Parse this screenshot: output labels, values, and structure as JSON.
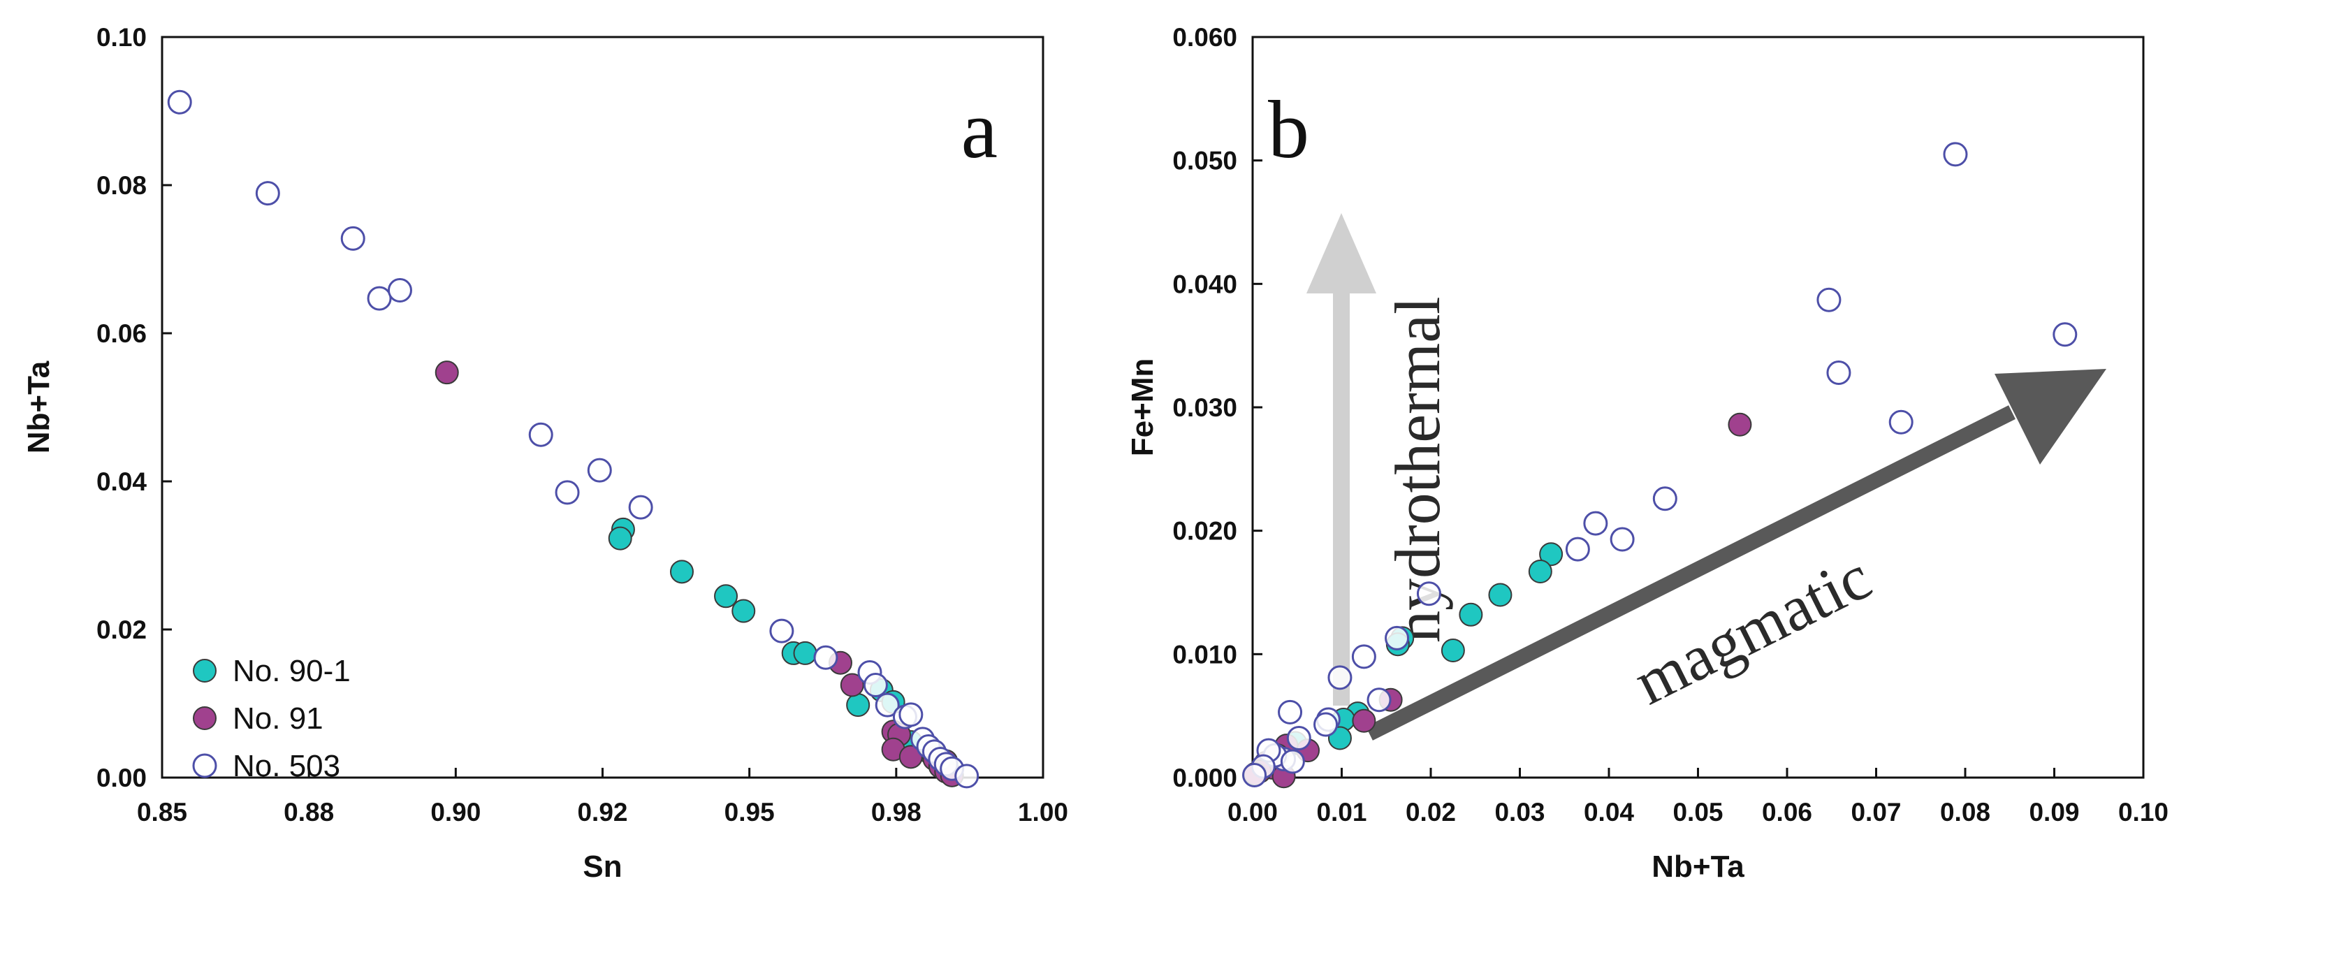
{
  "chart_data": [
    {
      "type": "scatter",
      "panel_label": "a",
      "xlabel": "Sn",
      "ylabel": "Nb+Ta",
      "xlim": [
        0.85,
        1.0
      ],
      "ylim": [
        0.0,
        0.1
      ],
      "xticks": [
        "0.85",
        "0.88",
        "0.90",
        "0.92",
        "0.95",
        "0.98",
        "1.00"
      ],
      "yticks": [
        "0.00",
        "0.02",
        "0.04",
        "0.06",
        "0.08",
        "0.10"
      ],
      "legend_position": "bottom-left",
      "series": [
        {
          "name": "No. 90-1",
          "marker": "filled-circle",
          "color": "#1fc7c1",
          "points": [
            [
              0.9285,
              0.0335
            ],
            [
              0.928,
              0.0323
            ],
            [
              0.9385,
              0.0278
            ],
            [
              0.946,
              0.0245
            ],
            [
              0.949,
              0.0225
            ],
            [
              0.9575,
              0.0168
            ],
            [
              0.9595,
              0.0168
            ],
            [
              0.9725,
              0.0118
            ],
            [
              0.9745,
              0.0102
            ],
            [
              0.9685,
              0.0098
            ],
            [
              0.9775,
              0.0048
            ],
            [
              0.9805,
              0.0035
            ],
            [
              0.982,
              0.0028
            ]
          ]
        },
        {
          "name": "No. 91",
          "marker": "filled-circle",
          "color": "#a0418e",
          "points": [
            [
              0.8985,
              0.0547
            ],
            [
              0.9655,
              0.0155
            ],
            [
              0.9675,
              0.0125
            ],
            [
              0.9745,
              0.0062
            ],
            [
              0.9755,
              0.0058
            ],
            [
              0.9745,
              0.0038
            ],
            [
              0.9775,
              0.0028
            ],
            [
              0.9815,
              0.0025
            ],
            [
              0.9825,
              0.0015
            ],
            [
              0.9835,
              0.0022
            ],
            [
              0.9835,
              0.0008
            ],
            [
              0.9845,
              0.0003
            ]
          ]
        },
        {
          "name": "No. 503",
          "marker": "open-circle",
          "color": "#4d4fa8",
          "points": [
            [
              0.853,
              0.0912
            ],
            [
              0.868,
              0.0789
            ],
            [
              0.8825,
              0.0728
            ],
            [
              0.887,
              0.0647
            ],
            [
              0.8905,
              0.0658
            ],
            [
              0.9145,
              0.0463
            ],
            [
              0.919,
              0.0385
            ],
            [
              0.9245,
              0.0415
            ],
            [
              0.9315,
              0.0365
            ],
            [
              0.9555,
              0.0198
            ],
            [
              0.963,
              0.0162
            ],
            [
              0.9705,
              0.0142
            ],
            [
              0.9715,
              0.0125
            ],
            [
              0.9735,
              0.0098
            ],
            [
              0.9765,
              0.0082
            ],
            [
              0.9775,
              0.0085
            ],
            [
              0.9795,
              0.0052
            ],
            [
              0.9805,
              0.0042
            ],
            [
              0.9815,
              0.0035
            ],
            [
              0.9825,
              0.0025
            ],
            [
              0.9835,
              0.0018
            ],
            [
              0.9845,
              0.0012
            ],
            [
              0.987,
              0.0002
            ]
          ]
        }
      ]
    },
    {
      "type": "scatter",
      "panel_label": "b",
      "xlabel": "Nb+Ta",
      "ylabel": "Fe+Mn",
      "xlim": [
        0.0,
        0.1
      ],
      "ylim": [
        0.0,
        0.06
      ],
      "xticks": [
        "0.00",
        "0.01",
        "0.02",
        "0.03",
        "0.04",
        "0.05",
        "0.06",
        "0.07",
        "0.08",
        "0.09",
        "0.10"
      ],
      "yticks": [
        "0.000",
        "0.010",
        "0.020",
        "0.030",
        "0.040",
        "0.050",
        "0.060"
      ],
      "annotations": [
        {
          "text": "hydrothermal",
          "direction": "vertical-up",
          "color": "#d0d0d0"
        },
        {
          "text": "magmatic",
          "direction": "diagonal-up-right",
          "color": "#595959"
        }
      ],
      "series": [
        {
          "name": "No. 90-1",
          "marker": "filled-circle",
          "color": "#1fc7c1",
          "points": [
            [
              0.0335,
              0.0181
            ],
            [
              0.0323,
              0.0167
            ],
            [
              0.0278,
              0.0148
            ],
            [
              0.0245,
              0.0132
            ],
            [
              0.0225,
              0.0103
            ],
            [
              0.0168,
              0.0113
            ],
            [
              0.0163,
              0.0108
            ],
            [
              0.0118,
              0.0052
            ],
            [
              0.0102,
              0.0047
            ],
            [
              0.0098,
              0.0032
            ],
            [
              0.0048,
              0.0028
            ]
          ]
        },
        {
          "name": "No. 91",
          "marker": "filled-circle",
          "color": "#a0418e",
          "points": [
            [
              0.0547,
              0.0286
            ],
            [
              0.0155,
              0.0063
            ],
            [
              0.0125,
              0.0046
            ],
            [
              0.0062,
              0.0022
            ],
            [
              0.0038,
              0.0026
            ],
            [
              0.0028,
              0.0018
            ],
            [
              0.0022,
              0.0008
            ],
            [
              0.0015,
              0.0012
            ],
            [
              0.0008,
              0.0005
            ],
            [
              0.0003,
              0.0003
            ],
            [
              0.0035,
              0.0001
            ]
          ]
        },
        {
          "name": "No. 503",
          "marker": "open-circle",
          "color": "#4d4fa8",
          "points": [
            [
              0.0789,
              0.0505
            ],
            [
              0.0912,
              0.0359
            ],
            [
              0.0647,
              0.0387
            ],
            [
              0.0658,
              0.0328
            ],
            [
              0.0728,
              0.0288
            ],
            [
              0.0463,
              0.0226
            ],
            [
              0.0415,
              0.0193
            ],
            [
              0.0385,
              0.0206
            ],
            [
              0.0365,
              0.0185
            ],
            [
              0.0198,
              0.0149
            ],
            [
              0.0162,
              0.0113
            ],
            [
              0.0125,
              0.0098
            ],
            [
              0.0142,
              0.0063
            ],
            [
              0.0098,
              0.0081
            ],
            [
              0.0085,
              0.0047
            ],
            [
              0.0082,
              0.0043
            ],
            [
              0.0052,
              0.0032
            ],
            [
              0.0042,
              0.0053
            ],
            [
              0.0035,
              0.0015
            ],
            [
              0.0025,
              0.0018
            ],
            [
              0.0018,
              0.0022
            ],
            [
              0.0012,
              0.0009
            ],
            [
              0.0045,
              0.0013
            ],
            [
              0.0002,
              0.0002
            ]
          ]
        }
      ]
    }
  ]
}
